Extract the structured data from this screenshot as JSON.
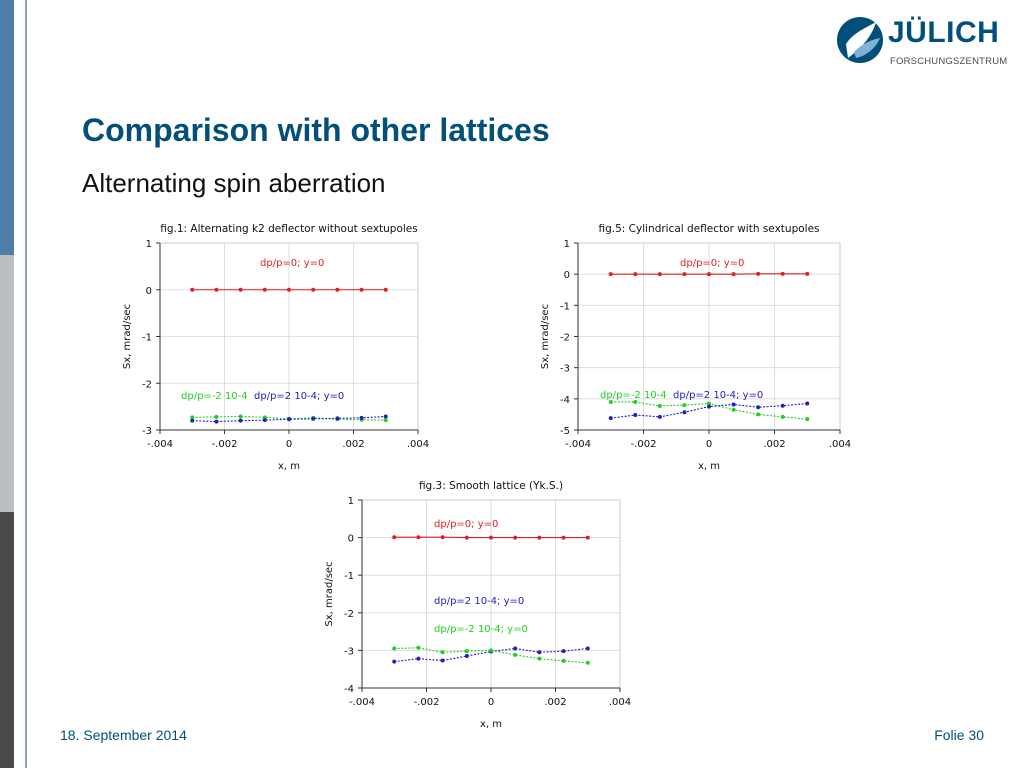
{
  "slide": {
    "title": "Comparison with other lattices",
    "subtitle": "Alternating spin aberration",
    "footer_date": "18. September 2014",
    "footer_page": "Folie 30"
  },
  "logo": {
    "word": "JÜLICH",
    "sub": "FORSCHUNGSZENTRUM",
    "color": "#02507a"
  },
  "chart_data": [
    {
      "type": "line",
      "title": "fig.1: Alternating k2 deflector without sextupoles",
      "xlabel": "x, m",
      "ylabel": "Sx, mrad/sec",
      "xlim": [
        -0.004,
        0.004
      ],
      "ylim": [
        -3,
        1
      ],
      "xticks": [
        -0.004,
        -0.002,
        0,
        0.002,
        0.004
      ],
      "xtick_labels": [
        "-.004",
        "-.002",
        "0",
        ".002",
        ".004"
      ],
      "yticks": [
        -3,
        -2,
        -1,
        0,
        1
      ],
      "grid": true,
      "x": [
        -0.003,
        -0.00225,
        -0.0015,
        -0.00075,
        0,
        0.00075,
        0.0015,
        0.00225,
        0.003
      ],
      "series": [
        {
          "name": "dp/p=0; y=0",
          "color": "#e02020",
          "values": [
            0,
            0,
            0,
            0,
            0,
            0,
            0,
            0,
            0
          ]
        },
        {
          "name": "dp/p=-2 10-4",
          "color": "#20d020",
          "values": [
            -2.73,
            -2.72,
            -2.71,
            -2.73,
            -2.76,
            -2.74,
            -2.77,
            -2.78,
            -2.79
          ]
        },
        {
          "name": "dp/p=2 10-4; y=0",
          "color": "#2020c0",
          "values": [
            -2.8,
            -2.82,
            -2.8,
            -2.79,
            -2.77,
            -2.76,
            -2.75,
            -2.74,
            -2.71
          ]
        }
      ]
    },
    {
      "type": "line",
      "title": "fig.5: Cylindrical deflector with sextupoles",
      "xlabel": "x, m",
      "ylabel": "Sx, mrad/sec",
      "xlim": [
        -0.004,
        0.004
      ],
      "ylim": [
        -5,
        1
      ],
      "xticks": [
        -0.004,
        -0.002,
        0,
        0.002,
        0.004
      ],
      "xtick_labels": [
        "-.004",
        "-.002",
        "0",
        ".002",
        ".004"
      ],
      "yticks": [
        -5,
        -4,
        -3,
        -2,
        -1,
        0,
        1
      ],
      "grid": true,
      "x": [
        -0.003,
        -0.00225,
        -0.0015,
        -0.00075,
        0,
        0.00075,
        0.0015,
        0.00225,
        0.003
      ],
      "series": [
        {
          "name": "dp/p=0; y=0",
          "color": "#e02020",
          "values": [
            0,
            0,
            0,
            0,
            0,
            0,
            0.01,
            0.01,
            0.01
          ]
        },
        {
          "name": "dp/p=-2 10-4",
          "color": "#20d020",
          "values": [
            -4.1,
            -4.1,
            -4.23,
            -4.2,
            -4.15,
            -4.35,
            -4.5,
            -4.58,
            -4.65
          ]
        },
        {
          "name": "dp/p=2 10-4; y=0",
          "color": "#2020c0",
          "values": [
            -4.62,
            -4.52,
            -4.58,
            -4.43,
            -4.25,
            -4.18,
            -4.27,
            -4.22,
            -4.15
          ]
        }
      ]
    },
    {
      "type": "line",
      "title": "fig.3: Smooth lattice (Yk.S.)",
      "xlabel": "x, m",
      "ylabel": "Sx, mrad/sec",
      "xlim": [
        -0.004,
        0.004
      ],
      "ylim": [
        -4,
        1
      ],
      "xticks": [
        -0.004,
        -0.002,
        0,
        0.002,
        0.004
      ],
      "xtick_labels": [
        "-.004",
        "-.002",
        "0",
        ".002",
        ".004"
      ],
      "yticks": [
        -4,
        -3,
        -2,
        -1,
        0,
        1
      ],
      "grid": true,
      "x": [
        -0.003,
        -0.00225,
        -0.0015,
        -0.00075,
        0,
        0.00075,
        0.0015,
        0.00225,
        0.003
      ],
      "series": [
        {
          "name": "dp/p=0; y=0",
          "color": "#e02020",
          "values": [
            0.01,
            0.01,
            0.01,
            0,
            0,
            0,
            0,
            0,
            0
          ]
        },
        {
          "name": "dp/p=2 10-4; y=0",
          "color": "#2020c0",
          "values": [
            -3.3,
            -3.22,
            -3.27,
            -3.15,
            -3.03,
            -2.95,
            -3.05,
            -3.02,
            -2.95
          ]
        },
        {
          "name": "dp/p=-2 10-4; y=0",
          "color": "#20d020",
          "values": [
            -2.95,
            -2.93,
            -3.05,
            -3.02,
            -3.0,
            -3.12,
            -3.22,
            -3.28,
            -3.33
          ]
        }
      ]
    }
  ]
}
